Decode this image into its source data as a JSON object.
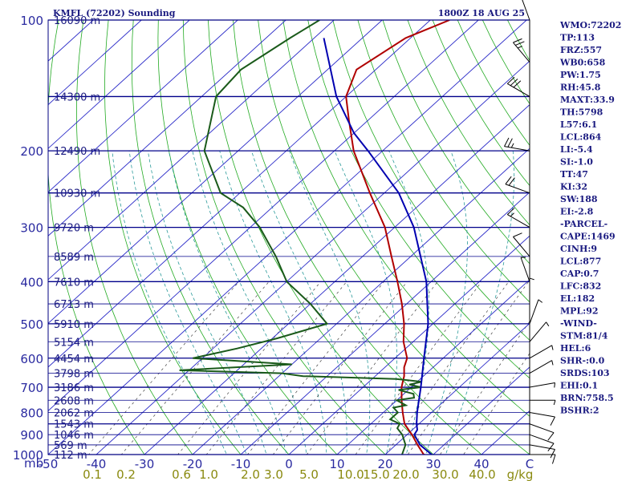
{
  "header": {
    "station": "KMFL (72202) Sounding",
    "time": "1800Z 18 AUG 25"
  },
  "chart_data": {
    "type": "line",
    "plot_type": "skew-T log-P",
    "pressure_range_mb": [
      1000,
      100
    ],
    "temperature_range_c": [
      -50,
      50
    ],
    "pressure_ticks": [
      "100",
      "200",
      "300",
      "400",
      "500",
      "600",
      "700",
      "800",
      "900",
      "1000"
    ],
    "temperature_ticks": [
      "-50",
      "-40",
      "-30",
      "-20",
      "-10",
      "0",
      "10",
      "20",
      "30",
      "40",
      "C"
    ],
    "mixing_ratio_ticks": [
      "0.1",
      "0.2",
      "0.6",
      "1.0",
      "2.0",
      "3.0",
      "5.0",
      "10.0",
      "15.0",
      "20.0",
      "30.0",
      "40.0",
      "g/kg"
    ],
    "pressure_axis_unit": "mb",
    "height_labels": [
      {
        "p": 100,
        "label": "16090 m"
      },
      {
        "p": 150,
        "label": "14300 m"
      },
      {
        "p": 200,
        "label": "12490 m"
      },
      {
        "p": 250,
        "label": "10930 m"
      },
      {
        "p": 300,
        "label": "9720 m"
      },
      {
        "p": 350,
        "label": "8589 m"
      },
      {
        "p": 400,
        "label": "7610 m"
      },
      {
        "p": 450,
        "label": "6713 m"
      },
      {
        "p": 500,
        "label": "5910 m"
      },
      {
        "p": 550,
        "label": "5154 m"
      },
      {
        "p": 600,
        "label": "4454 m"
      },
      {
        "p": 650,
        "label": "3798 m"
      },
      {
        "p": 700,
        "label": "3186 m"
      },
      {
        "p": 750,
        "label": "2608 m"
      },
      {
        "p": 800,
        "label": "2062 m"
      },
      {
        "p": 850,
        "label": "1543 m"
      },
      {
        "p": 900,
        "label": "1046 m"
      },
      {
        "p": 950,
        "label": "569 m"
      },
      {
        "p": 1000,
        "label": "112 m"
      }
    ],
    "series": [
      {
        "name": "Temperature",
        "color": "#b00000",
        "points": [
          {
            "p": 1015,
            "t": 31
          },
          {
            "p": 1000,
            "t": 28
          },
          {
            "p": 950,
            "t": 24.5
          },
          {
            "p": 900,
            "t": 21
          },
          {
            "p": 850,
            "t": 17
          },
          {
            "p": 800,
            "t": 14
          },
          {
            "p": 750,
            "t": 11
          },
          {
            "p": 700,
            "t": 8
          },
          {
            "p": 680,
            "t": 7
          },
          {
            "p": 660,
            "t": 6
          },
          {
            "p": 630,
            "t": 4
          },
          {
            "p": 600,
            "t": 2.5
          },
          {
            "p": 550,
            "t": -2
          },
          {
            "p": 500,
            "t": -6
          },
          {
            "p": 450,
            "t": -11
          },
          {
            "p": 400,
            "t": -17
          },
          {
            "p": 350,
            "t": -24
          },
          {
            "p": 300,
            "t": -32
          },
          {
            "p": 250,
            "t": -43
          },
          {
            "p": 200,
            "t": -56
          },
          {
            "p": 170,
            "t": -64
          },
          {
            "p": 150,
            "t": -70
          },
          {
            "p": 130,
            "t": -74
          },
          {
            "p": 110,
            "t": -71
          },
          {
            "p": 100,
            "t": -66
          }
        ]
      },
      {
        "name": "Dewpoint",
        "color": "#1a5a1a",
        "points": [
          {
            "p": 1015,
            "t": 24
          },
          {
            "p": 1000,
            "t": 23.5
          },
          {
            "p": 950,
            "t": 22
          },
          {
            "p": 900,
            "t": 19
          },
          {
            "p": 870,
            "t": 16.5
          },
          {
            "p": 850,
            "t": 16
          },
          {
            "p": 830,
            "t": 13
          },
          {
            "p": 800,
            "t": 13
          },
          {
            "p": 780,
            "t": 11
          },
          {
            "p": 770,
            "t": 13
          },
          {
            "p": 750,
            "t": 10
          },
          {
            "p": 740,
            "t": 13
          },
          {
            "p": 725,
            "t": 12
          },
          {
            "p": 710,
            "t": 8
          },
          {
            "p": 700,
            "t": 12
          },
          {
            "p": 690,
            "t": 9
          },
          {
            "p": 680,
            "t": 11
          },
          {
            "p": 670,
            "t": 5
          },
          {
            "p": 660,
            "t": -15
          },
          {
            "p": 650,
            "t": -20
          },
          {
            "p": 640,
            "t": -42
          },
          {
            "p": 620,
            "t": -20
          },
          {
            "p": 600,
            "t": -42
          },
          {
            "p": 570,
            "t": -35
          },
          {
            "p": 540,
            "t": -29
          },
          {
            "p": 500,
            "t": -22
          },
          {
            "p": 450,
            "t": -30
          },
          {
            "p": 400,
            "t": -40
          },
          {
            "p": 350,
            "t": -48
          },
          {
            "p": 300,
            "t": -58
          },
          {
            "p": 270,
            "t": -66
          },
          {
            "p": 250,
            "t": -74
          },
          {
            "p": 200,
            "t": -87
          },
          {
            "p": 150,
            "t": -97
          },
          {
            "p": 130,
            "t": -98
          },
          {
            "p": 110,
            "t": -95
          },
          {
            "p": 100,
            "t": -93
          }
        ]
      },
      {
        "name": "Parcel",
        "color": "#0000b0",
        "points": [
          {
            "p": 1015,
            "t": 31
          },
          {
            "p": 950,
            "t": 25
          },
          {
            "p": 900,
            "t": 21.5
          },
          {
            "p": 877,
            "t": 21
          },
          {
            "p": 850,
            "t": 19.5
          },
          {
            "p": 800,
            "t": 17
          },
          {
            "p": 700,
            "t": 12
          },
          {
            "p": 600,
            "t": 6
          },
          {
            "p": 500,
            "t": -1
          },
          {
            "p": 400,
            "t": -11
          },
          {
            "p": 300,
            "t": -26
          },
          {
            "p": 250,
            "t": -37
          },
          {
            "p": 200,
            "t": -53
          },
          {
            "p": 182,
            "t": -60
          },
          {
            "p": 150,
            "t": -72
          },
          {
            "p": 110,
            "t": -88
          }
        ]
      }
    ],
    "wind_barbs": [
      {
        "p": 1000,
        "dir": 90,
        "spd": 8
      },
      {
        "p": 950,
        "dir": 100,
        "spd": 10
      },
      {
        "p": 900,
        "dir": 110,
        "spd": 8
      },
      {
        "p": 850,
        "dir": 110,
        "spd": 10
      },
      {
        "p": 800,
        "dir": 100,
        "spd": 8
      },
      {
        "p": 750,
        "dir": 90,
        "spd": 5
      },
      {
        "p": 700,
        "dir": 80,
        "spd": 5
      },
      {
        "p": 650,
        "dir": 60,
        "spd": 5
      },
      {
        "p": 600,
        "dir": 60,
        "spd": 3
      },
      {
        "p": 550,
        "dir": 40,
        "spd": 3
      },
      {
        "p": 500,
        "dir": 20,
        "spd": 5
      },
      {
        "p": 450,
        "dir": 0,
        "spd": 5
      },
      {
        "p": 400,
        "dir": 340,
        "spd": 5
      },
      {
        "p": 350,
        "dir": 320,
        "spd": 10
      },
      {
        "p": 300,
        "dir": 300,
        "spd": 15
      },
      {
        "p": 250,
        "dir": 290,
        "spd": 20
      },
      {
        "p": 200,
        "dir": 280,
        "spd": 25
      },
      {
        "p": 150,
        "dir": 300,
        "spd": 30
      },
      {
        "p": 125,
        "dir": 320,
        "spd": 25
      },
      {
        "p": 100,
        "dir": 340,
        "spd": 20
      }
    ]
  },
  "stats": [
    "WMO:72202",
    "TP:113",
    "FRZ:557",
    "WB0:658",
    "PW:1.75",
    "RH:45.8",
    "MAXT:33.9",
    "TH:5798",
    "L57:6.1",
    "LCL:864",
    "LI:-5.4",
    "SI:-1.0",
    "TT:47",
    "KI:32",
    "SW:188",
    "EI:-2.8",
    "-PARCEL-",
    "CAPE:1469",
    "CINH:9",
    "LCL:877",
    "CAP:0.7",
    "LFC:832",
    "EL:182",
    "MPL:92",
    "-WIND-",
    "STM:81/4",
    "HEL:6",
    "SHR-:0.0",
    "SRDS:103",
    "EHI:0.1",
    "BRN:758.5",
    "BSHR:2"
  ],
  "colors": {
    "isobar": "#00008a",
    "isotherm": "#2a2ac8",
    "dry_adiabat": "#22aa22",
    "moist_adiabat": "#2a9a9a",
    "mixing_ratio": "#444444",
    "frame": "#000080"
  }
}
